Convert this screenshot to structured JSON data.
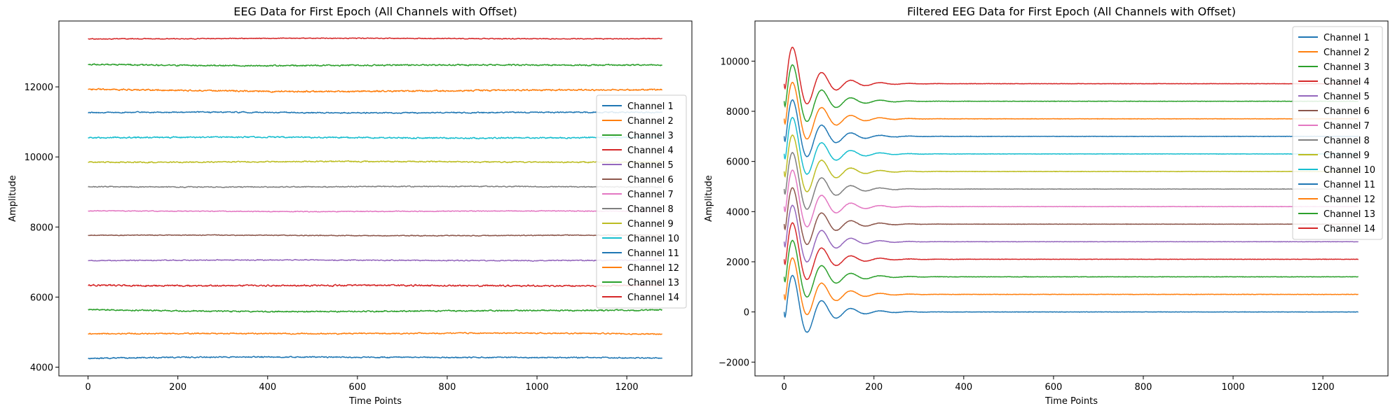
{
  "colors": [
    "#1f77b4",
    "#ff7f0e",
    "#2ca02c",
    "#d62728",
    "#9467bd",
    "#8c564b",
    "#e377c2",
    "#7f7f7f",
    "#bcbd22",
    "#17becf",
    "#1f77b4",
    "#ff7f0e",
    "#2ca02c",
    "#d62728"
  ],
  "chart_data": [
    {
      "type": "line",
      "title": "EEG Data for First Epoch (All Channels with Offset)",
      "xlabel": "Time Points",
      "ylabel": "Amplitude",
      "xlim": [
        -65,
        1345
      ],
      "ylim": [
        3750,
        13880
      ],
      "xticks": [
        0,
        200,
        400,
        600,
        800,
        1000,
        1200
      ],
      "yticks": [
        4000,
        6000,
        8000,
        10000,
        12000
      ],
      "legend_position": "center-right",
      "n_points": 1280,
      "series": [
        {
          "name": "Channel 1",
          "baseline": 4250,
          "noise": 14,
          "trend": 40
        },
        {
          "name": "Channel 2",
          "baseline": 4940,
          "noise": 14,
          "trend": 30
        },
        {
          "name": "Channel 3",
          "baseline": 5640,
          "noise": 16,
          "trend": -50
        },
        {
          "name": "Channel 4",
          "baseline": 6350,
          "noise": 18,
          "trend": -30
        },
        {
          "name": "Channel 5",
          "baseline": 7050,
          "noise": 12,
          "trend": 0
        },
        {
          "name": "Channel 6",
          "baseline": 7760,
          "noise": 10,
          "trend": 0
        },
        {
          "name": "Channel 7",
          "baseline": 8450,
          "noise": 10,
          "trend": 0
        },
        {
          "name": "Channel 8",
          "baseline": 9150,
          "noise": 12,
          "trend": 0
        },
        {
          "name": "Channel 9",
          "baseline": 9860,
          "noise": 14,
          "trend": 0
        },
        {
          "name": "Channel 10",
          "baseline": 10560,
          "noise": 16,
          "trend": -10
        },
        {
          "name": "Channel 11",
          "baseline": 11260,
          "noise": 14,
          "trend": 10
        },
        {
          "name": "Channel 12",
          "baseline": 11920,
          "noise": 18,
          "trend": -40
        },
        {
          "name": "Channel 13",
          "baseline": 12640,
          "noise": 16,
          "trend": -30
        },
        {
          "name": "Channel 14",
          "baseline": 13380,
          "noise": 10,
          "trend": 0
        }
      ]
    },
    {
      "type": "line",
      "title": "Filtered EEG Data for First Epoch (All Channels with Offset)",
      "xlabel": "Time Points",
      "ylabel": "Amplitude",
      "xlim": [
        -65,
        1345
      ],
      "ylim": [
        -2550,
        11600
      ],
      "xticks": [
        0,
        200,
        400,
        600,
        800,
        1000,
        1200
      ],
      "yticks": [
        -2000,
        0,
        2000,
        4000,
        6000,
        8000,
        10000
      ],
      "legend_position": "upper-right",
      "n_points": 1280,
      "transient": {
        "amplitude": 1800,
        "period": 65,
        "decay": 55
      },
      "series": [
        {
          "name": "Channel 1",
          "baseline": 0
        },
        {
          "name": "Channel 2",
          "baseline": 700
        },
        {
          "name": "Channel 3",
          "baseline": 1400
        },
        {
          "name": "Channel 4",
          "baseline": 2100
        },
        {
          "name": "Channel 5",
          "baseline": 2800
        },
        {
          "name": "Channel 6",
          "baseline": 3500
        },
        {
          "name": "Channel 7",
          "baseline": 4200
        },
        {
          "name": "Channel 8",
          "baseline": 4900
        },
        {
          "name": "Channel 9",
          "baseline": 5600
        },
        {
          "name": "Channel 10",
          "baseline": 6300
        },
        {
          "name": "Channel 11",
          "baseline": 7000
        },
        {
          "name": "Channel 12",
          "baseline": 7700
        },
        {
          "name": "Channel 13",
          "baseline": 8400
        },
        {
          "name": "Channel 14",
          "baseline": 9100
        }
      ]
    }
  ]
}
